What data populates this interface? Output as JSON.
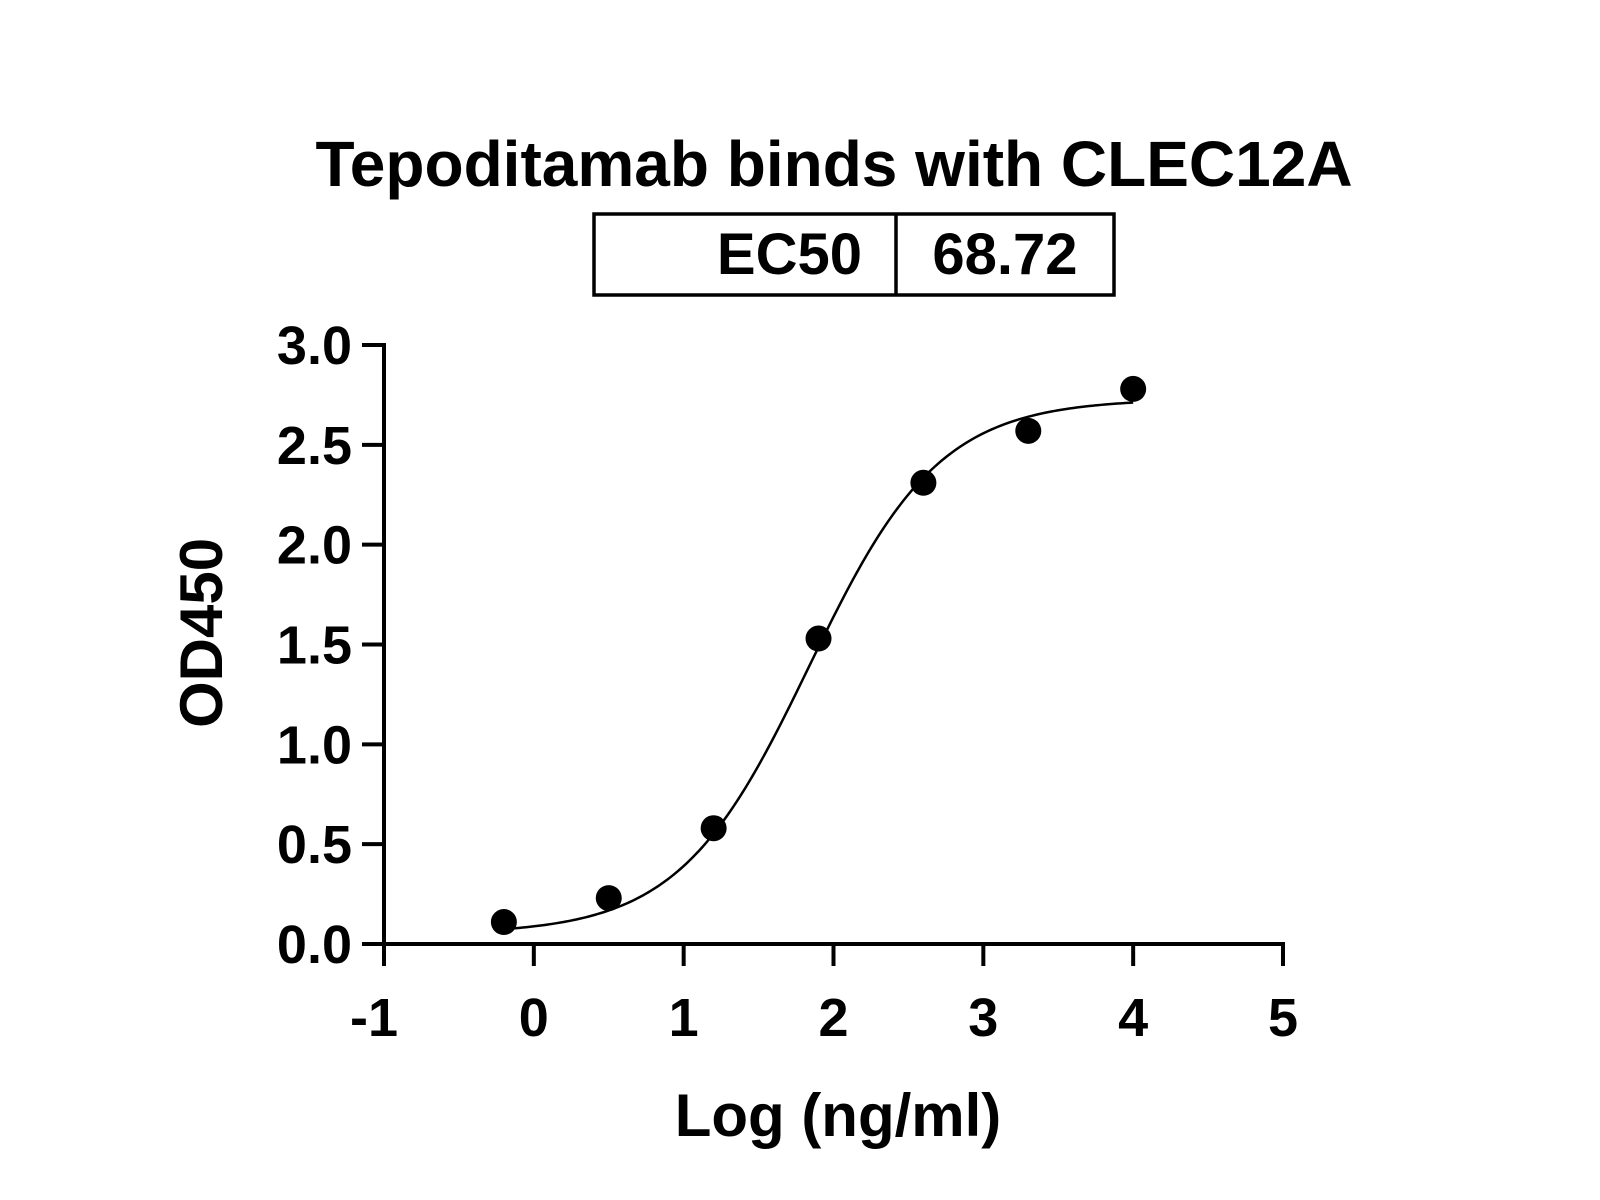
{
  "chart_data": {
    "type": "scatter",
    "title": "Tepoditamab binds with CLEC12A",
    "xlabel": "Log (ng/ml)",
    "ylabel": "OD450",
    "xlim": [
      -1,
      5
    ],
    "ylim": [
      0,
      3
    ],
    "x_ticks": [
      "-1",
      "0",
      "1",
      "2",
      "3",
      "4",
      "5"
    ],
    "y_ticks": [
      "0.0",
      "0.5",
      "1.0",
      "1.5",
      "2.0",
      "2.5",
      "3.0"
    ],
    "ec50_table": {
      "label": "EC50",
      "value": "68.72"
    },
    "series": [
      {
        "x": [
          -0.2,
          0.5,
          1.2,
          1.9,
          2.6,
          3.3,
          4.0
        ],
        "y": [
          0.11,
          0.23,
          0.58,
          1.53,
          2.31,
          2.57,
          2.78
        ]
      }
    ],
    "fit_curve": {
      "type": "four-parameter logistic",
      "x_range": [
        -0.2,
        4.0
      ],
      "bottom": 0.05,
      "top": 2.73,
      "log_ec50": 1.837,
      "hill_slope": 1.0
    },
    "grid": false,
    "legend": "none"
  }
}
